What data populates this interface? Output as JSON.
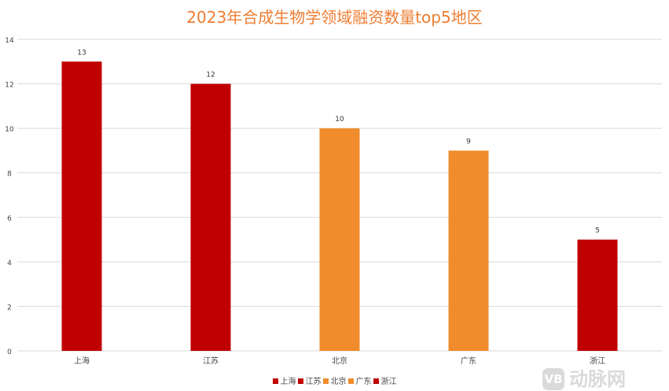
{
  "chart_data": {
    "type": "bar",
    "title": "2023年合成生物学领域融资数量top5地区",
    "categories": [
      "上海",
      "江苏",
      "北京",
      "广东",
      "浙江"
    ],
    "values": [
      13,
      12,
      10,
      9,
      5
    ],
    "colors": [
      "#c00000",
      "#c00000",
      "#f08c2c",
      "#f08c2c",
      "#c00000"
    ],
    "ylim": [
      0,
      14
    ],
    "yticks": [
      0,
      2,
      4,
      6,
      8,
      10,
      12,
      14
    ],
    "xlabel": "",
    "ylabel": "",
    "grid": true,
    "legend_position": "bottom"
  },
  "watermark": {
    "logo": "VB",
    "text": "动脉网"
  }
}
